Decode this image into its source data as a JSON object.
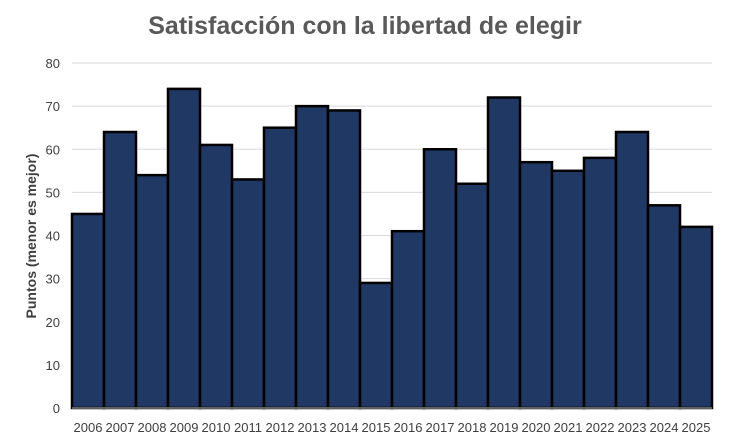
{
  "chart_data": {
    "type": "bar",
    "title": "Satisfacción con la libertad de elegir",
    "xlabel": "",
    "ylabel": "Puntos (menor es mejor)",
    "ylim": [
      0,
      80
    ],
    "yticks": [
      0,
      10,
      20,
      30,
      40,
      50,
      60,
      70,
      80
    ],
    "grid": true,
    "categories": [
      "2006",
      "2007",
      "2008",
      "2009",
      "2010",
      "2011",
      "2012",
      "2013",
      "2014",
      "2015",
      "2016",
      "2017",
      "2018",
      "2019",
      "2020",
      "2021",
      "2022",
      "2023",
      "2024",
      "2025"
    ],
    "values": [
      45,
      64,
      54,
      74,
      61,
      53,
      65,
      70,
      69,
      29,
      41,
      60,
      52,
      72,
      57,
      55,
      58,
      64,
      47,
      42
    ],
    "colors": {
      "bar_fill": "#1f3864",
      "bar_stroke": "#000000",
      "grid": "#d9d9d9",
      "axis": "#bfbfbf",
      "tick_text": "#404040"
    }
  }
}
